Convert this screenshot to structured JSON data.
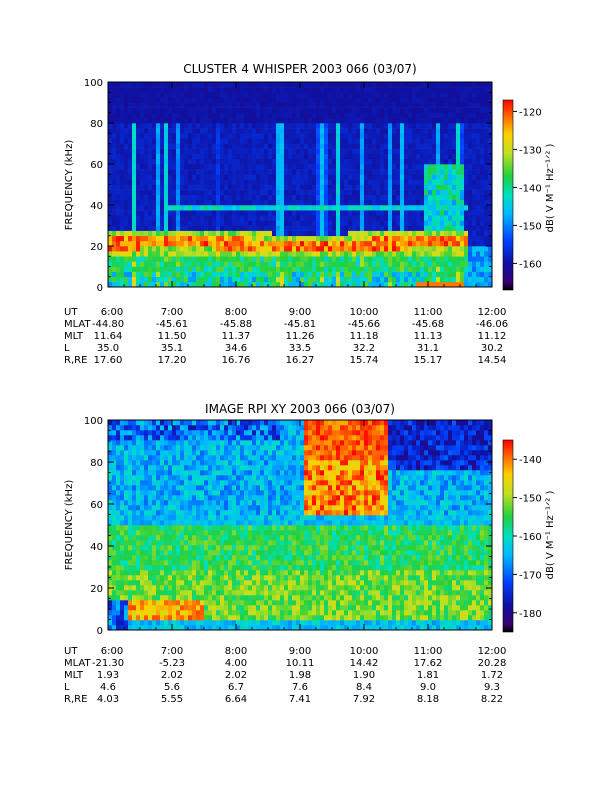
{
  "panels": [
    {
      "id": "whisper",
      "title": "CLUSTER 4 WHISPER 2003 066 (03/07)",
      "ylabel": "FREQUENCY (kHz)",
      "ylim": [
        0,
        100
      ],
      "ytick_labels": [
        "0",
        "20",
        "40",
        "60",
        "80",
        "100"
      ],
      "x_tick_labels": [
        "6:00",
        "7:00",
        "8:00",
        "9:00",
        "10:00",
        "11:00",
        "12:00"
      ],
      "colorbar": {
        "label": "dB( V M⁻¹ Hz⁻¹ᐟ² )",
        "tick_labels": [
          "-120",
          "-130",
          "-140",
          "-150",
          "-160"
        ],
        "range": [
          -167,
          -117
        ]
      },
      "ephemeris": {
        "row_labels": [
          "UT",
          "MLAT",
          "MLT",
          "L",
          "R,RE"
        ],
        "rows": [
          [
            "6:00",
            "7:00",
            "8:00",
            "9:00",
            "10:00",
            "11:00",
            "12:00"
          ],
          [
            "-44.80",
            "-45.61",
            "-45.88",
            "-45.81",
            "-45.66",
            "-45.68",
            "-46.06"
          ],
          [
            "11.64",
            "11.50",
            "11.37",
            "11.26",
            "11.18",
            "11.13",
            "11.12"
          ],
          [
            "35.0",
            "35.1",
            "34.6",
            "33.5",
            "32.2",
            "31.1",
            "30.2"
          ],
          [
            "17.60",
            "17.20",
            "16.76",
            "16.27",
            "15.74",
            "15.17",
            "14.54"
          ]
        ]
      }
    },
    {
      "id": "rpi",
      "title": "IMAGE RPI XY 2003 066 (03/07)",
      "ylabel": "FREQUENCY (kHz)",
      "ylim": [
        0,
        100
      ],
      "ytick_labels": [
        "0",
        "20",
        "40",
        "60",
        "80",
        "100"
      ],
      "x_tick_labels": [
        "6:00",
        "7:00",
        "8:00",
        "9:00",
        "10:00",
        "11:00",
        "12:00"
      ],
      "colorbar": {
        "label": "dB( V M⁻¹ Hz⁻¹ᐟ² )",
        "tick_labels": [
          "-140",
          "-150",
          "-160",
          "-170",
          "-180"
        ],
        "range": [
          -185,
          -135
        ]
      },
      "ephemeris": {
        "row_labels": [
          "UT",
          "MLAT",
          "MLT",
          "L",
          "R,RE"
        ],
        "rows": [
          [
            "6:00",
            "7:00",
            "8:00",
            "9:00",
            "10:00",
            "11:00",
            "12:00"
          ],
          [
            "-21.30",
            "-5.23",
            "4.00",
            "10.11",
            "14.42",
            "17.62",
            "20.28"
          ],
          [
            "1.93",
            "2.02",
            "2.02",
            "1.98",
            "1.90",
            "1.81",
            "1.72"
          ],
          [
            "4.6",
            "5.6",
            "6.7",
            "7.6",
            "8.4",
            "9.0",
            "9.3"
          ],
          [
            "4.03",
            "5.55",
            "6.64",
            "7.41",
            "7.92",
            "8.18",
            "8.22"
          ]
        ]
      }
    }
  ],
  "chart_data": [
    {
      "type": "heatmap",
      "title": "CLUSTER 4 WHISPER 2003 066 (03/07)",
      "xlabel": "UT",
      "ylabel": "FREQUENCY (kHz)",
      "x": [
        "6:00",
        "7:00",
        "8:00",
        "9:00",
        "10:00",
        "11:00",
        "12:00"
      ],
      "xlim": [
        "6:00",
        "12:00"
      ],
      "ylim": [
        0,
        100
      ],
      "data_upper_frequency_kHz": 80,
      "colorbar_label": "dB( V M⁻¹ Hz⁻¹ᐟ² )",
      "color_range": [
        -167,
        -117
      ],
      "features": {
        "emission_band_kHz": [
          16,
          26
        ],
        "weak_line_kHz": 38,
        "emission_ends_UT": "11:35"
      }
    },
    {
      "type": "heatmap",
      "title": "IMAGE RPI XY 2003 066 (03/07)",
      "xlabel": "UT",
      "ylabel": "FREQUENCY (kHz)",
      "x": [
        "6:00",
        "7:00",
        "8:00",
        "9:00",
        "10:00",
        "11:00",
        "12:00"
      ],
      "xlim": [
        "6:00",
        "12:00"
      ],
      "ylim": [
        0,
        100
      ],
      "colorbar_label": "dB( V M⁻¹ Hz⁻¹ᐟ² )",
      "color_range": [
        -185,
        -135
      ],
      "features": {
        "intense_emission_UT": [
          "9:00",
          "10:20"
        ],
        "intense_emission_kHz": [
          60,
          100
        ],
        "diffuse_band_kHz": [
          30,
          50
        ]
      }
    }
  ]
}
